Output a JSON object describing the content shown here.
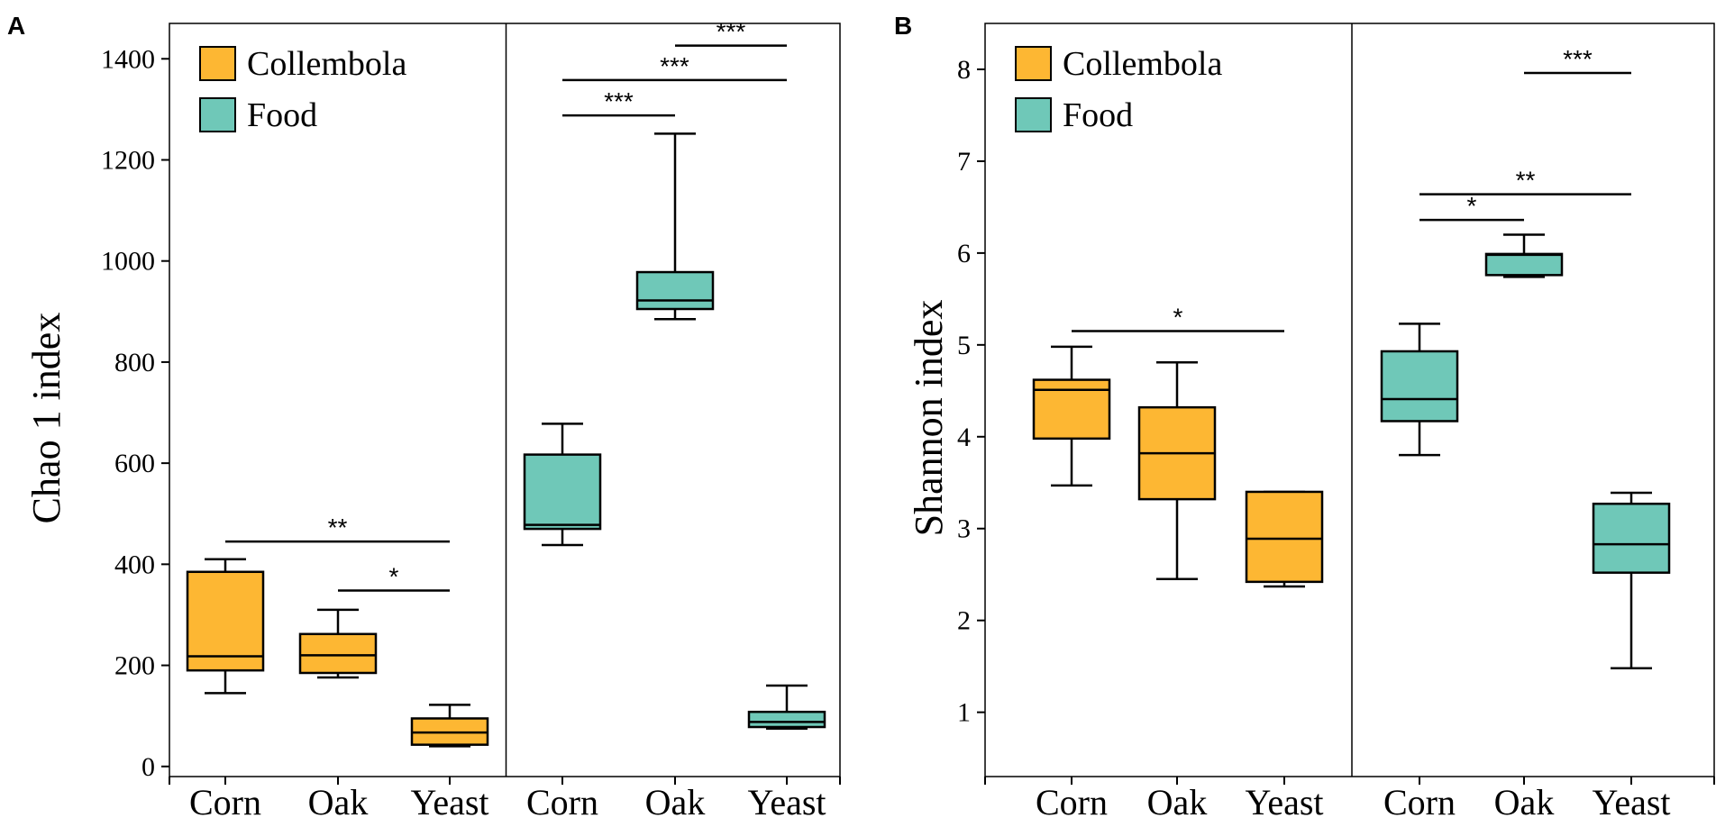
{
  "colors": {
    "collembola": "#FDB733",
    "food": "#6FC8B8",
    "stroke": "#000000"
  },
  "chart_data": [
    {
      "type": "box",
      "panel": "A",
      "ylabel": "Chao 1 index",
      "ylim": [
        -20,
        1470
      ],
      "yticks": [
        0,
        200,
        400,
        600,
        800,
        1000,
        1200,
        1400
      ],
      "legend": [
        "Collembola",
        "Food"
      ],
      "groups": [
        {
          "name": "Collembola",
          "boxes": [
            {
              "category": "Corn",
              "min": 145,
              "q1": 190,
              "median": 218,
              "q3": 385,
              "max": 410
            },
            {
              "category": "Oak",
              "min": 176,
              "q1": 185,
              "median": 220,
              "q3": 262,
              "max": 310
            },
            {
              "category": "Yeast",
              "min": 40,
              "q1": 43,
              "median": 67,
              "q3": 95,
              "max": 122
            }
          ],
          "sig": [
            {
              "from": 0,
              "to": 2,
              "value": 445,
              "label": "**"
            },
            {
              "from": 1,
              "to": 2,
              "value": 348,
              "label": "*"
            }
          ]
        },
        {
          "name": "Food",
          "boxes": [
            {
              "category": "Corn",
              "min": 438,
              "q1": 470,
              "median": 478,
              "q3": 617,
              "max": 678
            },
            {
              "category": "Oak",
              "min": 885,
              "q1": 905,
              "median": 922,
              "q3": 978,
              "max": 1252
            },
            {
              "category": "Yeast",
              "min": 75,
              "q1": 78,
              "median": 88,
              "q3": 108,
              "max": 160
            }
          ],
          "sig": [
            {
              "from": 0,
              "to": 1,
              "value": 1288,
              "label": "***"
            },
            {
              "from": 0,
              "to": 2,
              "value": 1358,
              "label": "***"
            },
            {
              "from": 1,
              "to": 2,
              "value": 1426,
              "label": "***"
            }
          ]
        }
      ]
    },
    {
      "type": "box",
      "panel": "B",
      "ylabel": "Shannon index",
      "ylim": [
        0.3,
        8.5
      ],
      "yticks": [
        1,
        2,
        3,
        4,
        5,
        6,
        7,
        8
      ],
      "legend": [
        "Collembola",
        "Food"
      ],
      "groups": [
        {
          "name": "Collembola",
          "boxes": [
            {
              "category": "Corn",
              "min": 3.47,
              "q1": 3.98,
              "median": 4.51,
              "q3": 4.62,
              "max": 4.98
            },
            {
              "category": "Oak",
              "min": 2.45,
              "q1": 3.32,
              "median": 3.82,
              "q3": 4.32,
              "max": 4.81
            },
            {
              "category": "Yeast",
              "min": 2.37,
              "q1": 2.42,
              "median": 2.89,
              "q3": 3.4,
              "max": 3.4
            }
          ],
          "sig": [
            {
              "from": 0,
              "to": 2,
              "value": 5.15,
              "label": "*"
            }
          ]
        },
        {
          "name": "Food",
          "boxes": [
            {
              "category": "Corn",
              "min": 3.8,
              "q1": 4.17,
              "median": 4.41,
              "q3": 4.93,
              "max": 5.23
            },
            {
              "category": "Oak",
              "min": 5.74,
              "q1": 5.76,
              "median": 5.98,
              "q3": 5.99,
              "max": 6.2
            },
            {
              "category": "Yeast",
              "min": 1.48,
              "q1": 2.52,
              "median": 2.83,
              "q3": 3.27,
              "max": 3.39
            }
          ],
          "sig": [
            {
              "from": 0,
              "to": 1,
              "value": 6.36,
              "label": "*"
            },
            {
              "from": 0,
              "to": 2,
              "value": 6.64,
              "label": "**"
            },
            {
              "from": 1,
              "to": 2,
              "value": 7.96,
              "label": "***"
            }
          ]
        }
      ]
    }
  ]
}
